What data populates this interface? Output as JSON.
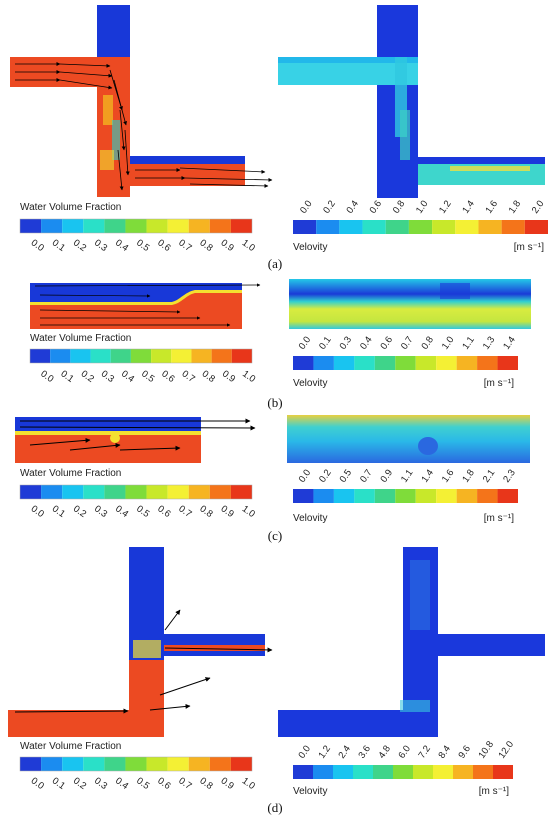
{
  "panels": [
    {
      "id": "a",
      "caption": "(a)",
      "left": {
        "title": "Water Volume Fraction",
        "ticks": [
          "0.0",
          "0.1",
          "0.2",
          "0.3",
          "0.4",
          "0.5",
          "0.6",
          "0.7",
          "0.8",
          "0.9",
          "1.0"
        ]
      },
      "right": {
        "title": "Velovity",
        "unit": "[m s⁻¹]",
        "ticks": [
          "0.0",
          "0.2",
          "0.4",
          "0.6",
          "0.8",
          "1.0",
          "1.2",
          "1.4",
          "1.6",
          "1.8",
          "2.0"
        ]
      }
    },
    {
      "id": "b",
      "caption": "(b)",
      "left": {
        "title": "Water Volume Fraction",
        "ticks": [
          "0.0",
          "0.1",
          "0.2",
          "0.3",
          "0.4",
          "0.5",
          "0.6",
          "0.7",
          "0.8",
          "0.9",
          "1.0"
        ]
      },
      "right": {
        "title": "Velovity",
        "unit": "[m s⁻¹]",
        "ticks": [
          "0.0",
          "0.1",
          "0.3",
          "0.4",
          "0.6",
          "0.7",
          "0.8",
          "1.0",
          "1.1",
          "1.3",
          "1.4"
        ]
      }
    },
    {
      "id": "c",
      "caption": "(c)",
      "left": {
        "title": "Water Volume Fraction",
        "ticks": [
          "0.0",
          "0.1",
          "0.2",
          "0.3",
          "0.4",
          "0.5",
          "0.6",
          "0.7",
          "0.8",
          "0.9",
          "1.0"
        ]
      },
      "right": {
        "title": "Velovity",
        "unit": "[m s⁻¹]",
        "ticks": [
          "0.0",
          "0.2",
          "0.5",
          "0.7",
          "0.9",
          "1.1",
          "1.4",
          "1.6",
          "1.8",
          "2.1",
          "2.3"
        ]
      }
    },
    {
      "id": "d",
      "caption": "(d)",
      "left": {
        "title": "Water Volume Fraction",
        "ticks": [
          "0.0",
          "0.1",
          "0.2",
          "0.3",
          "0.4",
          "0.5",
          "0.6",
          "0.7",
          "0.8",
          "0.9",
          "1.0"
        ]
      },
      "right": {
        "title": "Velovity",
        "unit": "[m s⁻¹]",
        "ticks": [
          "0.0",
          "1.2",
          "2.4",
          "3.6",
          "4.8",
          "6.0",
          "7.2",
          "8.4",
          "9.6",
          "10.8",
          "12.0"
        ]
      }
    }
  ],
  "colormap": [
    "#1f3bd6",
    "#1b8cf0",
    "#19c4f0",
    "#2ae0c8",
    "#3fd48a",
    "#7fdc3a",
    "#c8e82a",
    "#f4f034",
    "#f6b422",
    "#f4741a",
    "#e8361a"
  ],
  "colors": {
    "water": "#ec4a22",
    "air": "#1838d8",
    "low_velocity": "#2a3be0",
    "mid_velocity": "#3ed0e8"
  }
}
